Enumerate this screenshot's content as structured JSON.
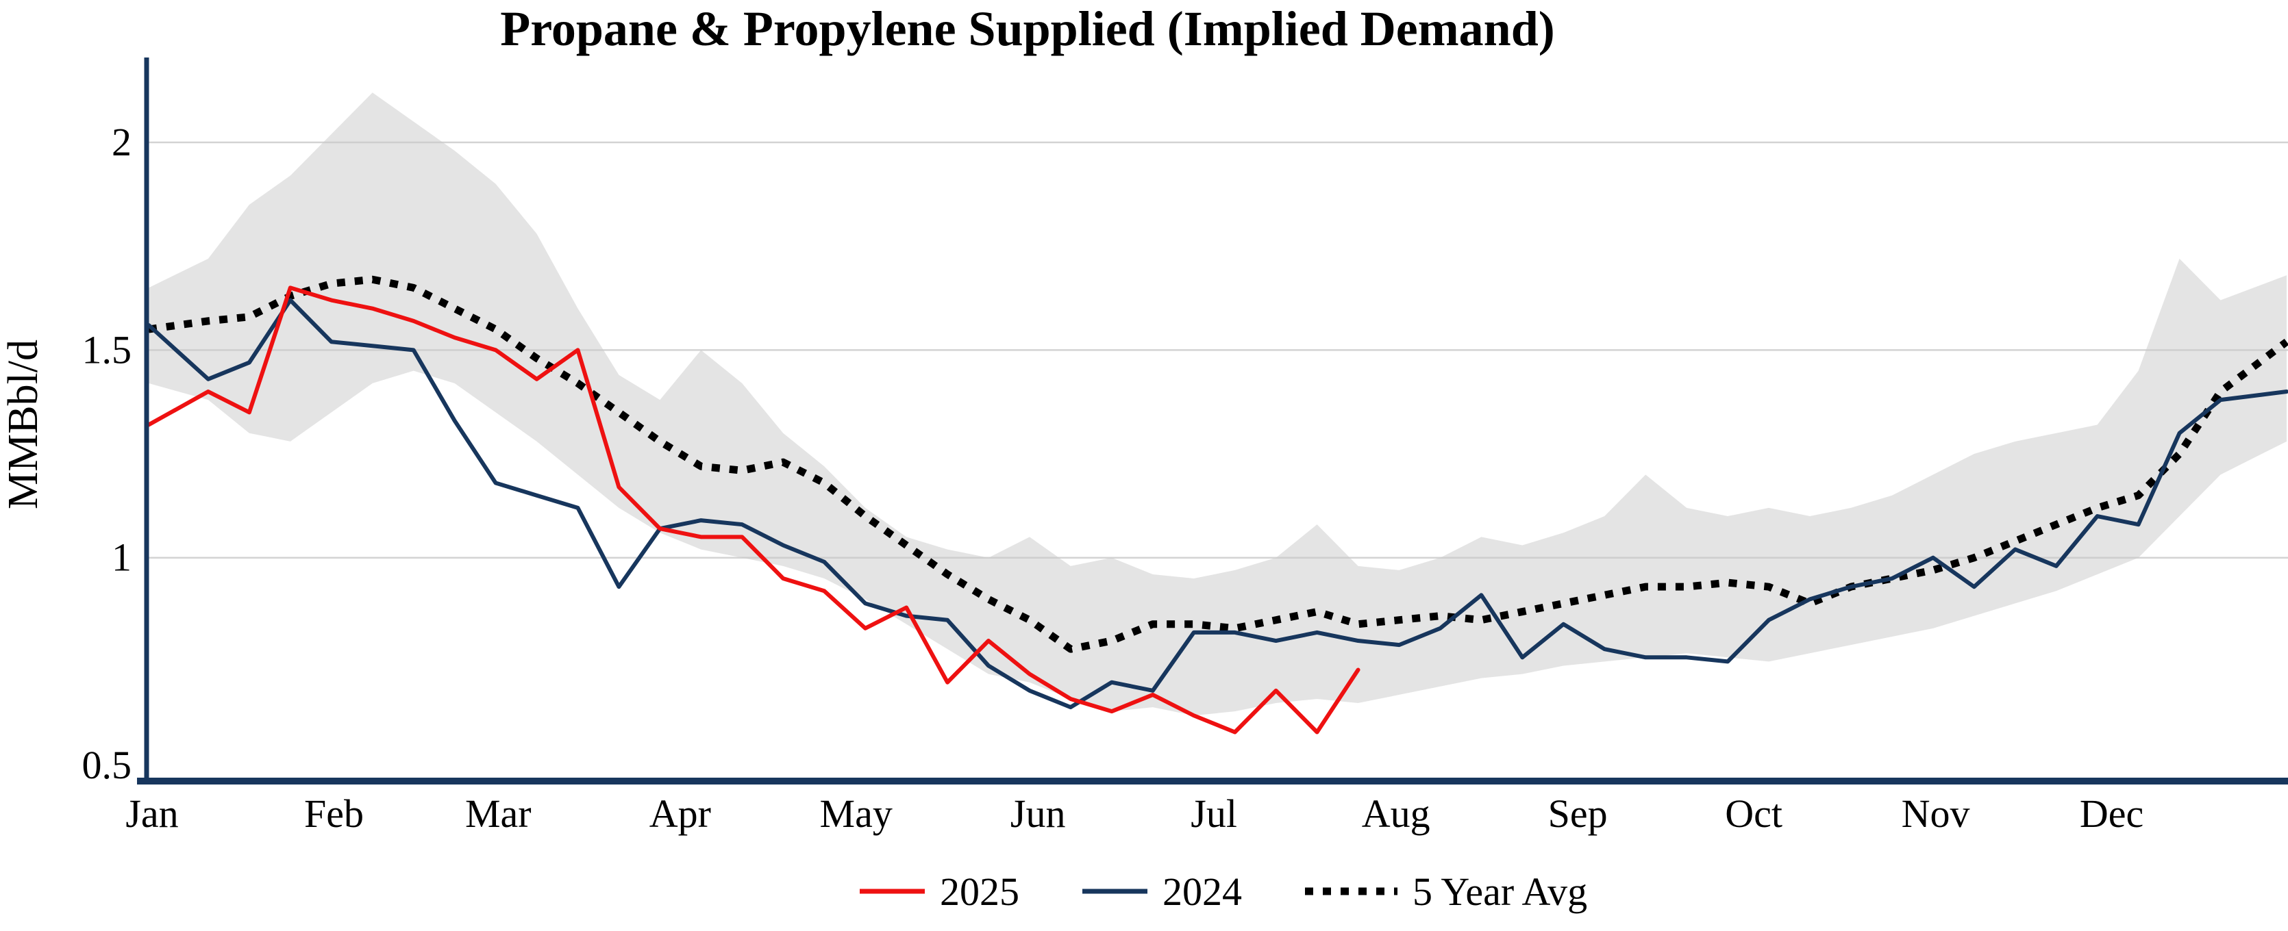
{
  "title": "Propane & Propylene Supplied (Implied Demand)",
  "y_axis": {
    "label": "MMBbl/d",
    "tick_values": [
      0.5,
      1,
      1.5,
      2
    ],
    "tick_labels": [
      "0.5",
      "1",
      "1.5",
      "2"
    ],
    "grid_values": [
      1,
      1.5,
      2
    ]
  },
  "x_axis": {
    "month_labels": [
      "Jan",
      "Feb",
      "Mar",
      "Apr",
      "May",
      "Jun",
      "Jul",
      "Aug",
      "Sep",
      "Oct",
      "Nov",
      "Dec"
    ],
    "month_start_days": [
      0,
      31,
      59,
      90,
      120,
      151,
      181,
      212,
      243,
      273,
      304,
      334
    ],
    "days_in_year": 365
  },
  "legend": {
    "items": [
      {
        "label": "2025",
        "color": "#ee1111",
        "style": "solid"
      },
      {
        "label": "2024",
        "color": "#17365d",
        "style": "solid"
      },
      {
        "label": "5 Year Avg",
        "color": "#000000",
        "style": "dotted"
      }
    ]
  },
  "colors": {
    "axis": "#17365d",
    "grid": "#d3d3d3",
    "band": "#c9c9c9",
    "series_2025": "#ee1111",
    "series_2024": "#17365d",
    "series_avg": "#000000",
    "background": "#ffffff",
    "text": "#000000"
  },
  "chart_data": {
    "type": "line",
    "title": "Propane & Propylene Supplied (Implied Demand)",
    "xlabel": "",
    "ylabel": "MMBbl/d",
    "x_unit": "week-of-year",
    "ylim": [
      0.46,
      2.2
    ],
    "grid": "horizontal",
    "legend_position": "bottom-center",
    "series": [
      {
        "name": "2025",
        "color": "#ee1111",
        "style": "solid",
        "values": [
          1.32,
          1.4,
          1.35,
          1.65,
          1.62,
          1.6,
          1.57,
          1.53,
          1.5,
          1.43,
          1.5,
          1.17,
          1.07,
          1.05,
          1.05,
          0.95,
          0.92,
          0.83,
          0.88,
          0.7,
          0.8,
          0.72,
          0.66,
          0.63,
          0.67,
          0.62,
          0.58,
          0.68,
          0.58,
          0.73
        ]
      },
      {
        "name": "2024",
        "color": "#17365d",
        "style": "solid",
        "values": [
          1.56,
          1.43,
          1.47,
          1.62,
          1.52,
          1.51,
          1.5,
          1.33,
          1.18,
          1.15,
          1.12,
          0.93,
          1.07,
          1.09,
          1.08,
          1.03,
          0.99,
          0.89,
          0.86,
          0.85,
          0.74,
          0.68,
          0.64,
          0.7,
          0.68,
          0.82,
          0.82,
          0.8,
          0.82,
          0.8,
          0.79,
          0.83,
          0.91,
          0.76,
          0.84,
          0.78,
          0.76,
          0.76,
          0.75,
          0.85,
          0.9,
          0.93,
          0.95,
          1.0,
          0.93,
          1.02,
          0.98,
          1.1,
          1.08,
          1.3,
          1.38,
          1.4
        ]
      },
      {
        "name": "5 Year Avg",
        "color": "#000000",
        "style": "dotted",
        "values": [
          1.55,
          1.57,
          1.58,
          1.63,
          1.66,
          1.67,
          1.65,
          1.6,
          1.55,
          1.48,
          1.42,
          1.35,
          1.28,
          1.22,
          1.21,
          1.23,
          1.18,
          1.1,
          1.03,
          0.96,
          0.9,
          0.85,
          0.78,
          0.8,
          0.84,
          0.84,
          0.83,
          0.85,
          0.87,
          0.84,
          0.85,
          0.86,
          0.85,
          0.87,
          0.89,
          0.91,
          0.93,
          0.93,
          0.94,
          0.93,
          0.89,
          0.93,
          0.95,
          0.97,
          1.0,
          1.04,
          1.08,
          1.12,
          1.15,
          1.25,
          1.4,
          1.52
        ]
      }
    ],
    "band": {
      "name": "5 Year Range",
      "color": "#c9c9c9",
      "upper": [
        1.65,
        1.72,
        1.85,
        1.92,
        2.02,
        2.12,
        2.05,
        1.98,
        1.9,
        1.78,
        1.6,
        1.44,
        1.38,
        1.5,
        1.42,
        1.3,
        1.22,
        1.12,
        1.05,
        1.02,
        1.0,
        1.05,
        0.98,
        1.0,
        0.96,
        0.95,
        0.97,
        1.0,
        1.08,
        0.98,
        0.97,
        1.0,
        1.05,
        1.03,
        1.06,
        1.1,
        1.2,
        1.12,
        1.1,
        1.12,
        1.1,
        1.12,
        1.15,
        1.2,
        1.25,
        1.28,
        1.3,
        1.32,
        1.45,
        1.72,
        1.62,
        1.68
      ],
      "lower": [
        1.42,
        1.38,
        1.3,
        1.28,
        1.35,
        1.42,
        1.45,
        1.42,
        1.35,
        1.28,
        1.2,
        1.12,
        1.06,
        1.02,
        1.0,
        0.98,
        0.95,
        0.9,
        0.84,
        0.78,
        0.72,
        0.7,
        0.66,
        0.63,
        0.64,
        0.62,
        0.63,
        0.65,
        0.66,
        0.65,
        0.67,
        0.69,
        0.71,
        0.72,
        0.74,
        0.75,
        0.76,
        0.77,
        0.76,
        0.75,
        0.77,
        0.79,
        0.81,
        0.83,
        0.86,
        0.89,
        0.92,
        0.96,
        1.0,
        1.1,
        1.2,
        1.28
      ]
    }
  }
}
